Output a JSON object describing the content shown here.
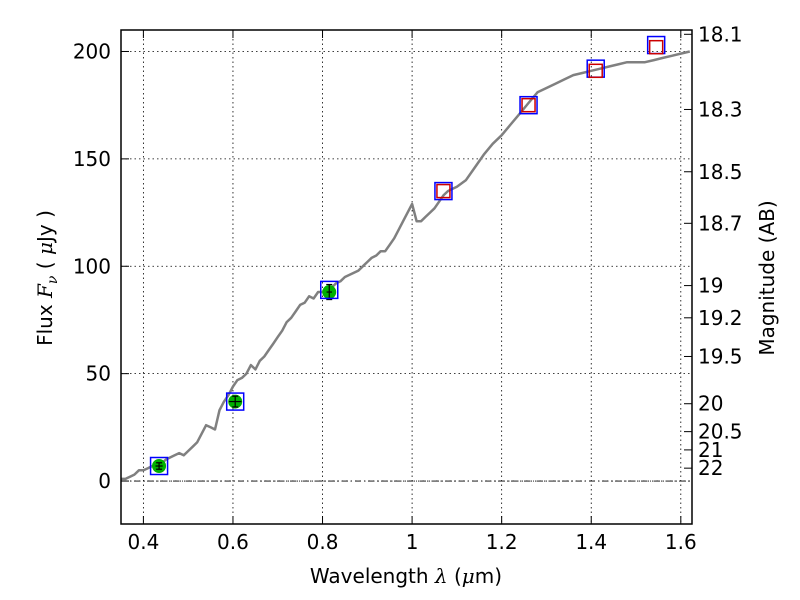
{
  "chart_data": {
    "type": "scatter",
    "title": "",
    "xlabel": {
      "prefix": "Wavelength  ",
      "symbol": "λ",
      "unit_open": " (",
      "unit_mu": "μ",
      "unit_close": "m)"
    },
    "ylabel": {
      "prefix": "Flux  ",
      "symbol": "F",
      "sub": "ν",
      "unit_open": "  ( ",
      "unit_mu": "μ",
      "unit_close": "Jy )"
    },
    "ylabel_right": "Magnitude (AB)",
    "xlim": [
      0.35,
      1.625
    ],
    "ylim": [
      -20,
      210
    ],
    "grid": true,
    "x_ticks": [
      {
        "value": 0.4,
        "label": "0.4"
      },
      {
        "value": 0.6,
        "label": "0.6"
      },
      {
        "value": 0.8,
        "label": "0.8"
      },
      {
        "value": 1.0,
        "label": "1"
      },
      {
        "value": 1.2,
        "label": "1.2"
      },
      {
        "value": 1.4,
        "label": "1.4"
      },
      {
        "value": 1.6,
        "label": "1.6"
      }
    ],
    "y_ticks": [
      {
        "value": 0,
        "label": "0"
      },
      {
        "value": 50,
        "label": "50"
      },
      {
        "value": 100,
        "label": "100"
      },
      {
        "value": 150,
        "label": "150"
      },
      {
        "value": 200,
        "label": "200"
      }
    ],
    "right_ticks": [
      {
        "flux": 208,
        "label": "18.1"
      },
      {
        "flux": 173,
        "label": "18.3"
      },
      {
        "flux": 144,
        "label": "18.5"
      },
      {
        "flux": 120,
        "label": "18.7"
      },
      {
        "flux": 91,
        "label": "19"
      },
      {
        "flux": 76,
        "label": "19.2"
      },
      {
        "flux": 58,
        "label": "19.5"
      },
      {
        "flux": 36,
        "label": "20"
      },
      {
        "flux": 23,
        "label": "20.5"
      },
      {
        "flux": 14.5,
        "label": "21"
      },
      {
        "flux": 6,
        "label": "22"
      }
    ],
    "zero_line": 0,
    "series": [
      {
        "kind": "spectrum",
        "color": "#808080",
        "x": [
          0.35,
          0.36,
          0.37,
          0.38,
          0.39,
          0.4,
          0.41,
          0.42,
          0.43,
          0.44,
          0.45,
          0.46,
          0.47,
          0.48,
          0.49,
          0.5,
          0.51,
          0.52,
          0.53,
          0.54,
          0.55,
          0.56,
          0.57,
          0.58,
          0.59,
          0.6,
          0.61,
          0.62,
          0.63,
          0.64,
          0.65,
          0.66,
          0.67,
          0.68,
          0.69,
          0.7,
          0.71,
          0.72,
          0.73,
          0.74,
          0.75,
          0.76,
          0.77,
          0.78,
          0.79,
          0.8,
          0.81,
          0.82,
          0.83,
          0.84,
          0.85,
          0.86,
          0.87,
          0.88,
          0.89,
          0.9,
          0.91,
          0.92,
          0.93,
          0.94,
          0.95,
          0.96,
          0.97,
          0.98,
          0.99,
          1.0,
          1.01,
          1.02,
          1.03,
          1.04,
          1.05,
          1.06,
          1.07,
          1.08,
          1.09,
          1.1,
          1.12,
          1.14,
          1.16,
          1.18,
          1.2,
          1.22,
          1.24,
          1.26,
          1.28,
          1.3,
          1.32,
          1.34,
          1.36,
          1.38,
          1.4,
          1.42,
          1.44,
          1.46,
          1.48,
          1.5,
          1.52,
          1.54,
          1.56,
          1.58,
          1.6,
          1.62
        ],
        "y": [
          1,
          1,
          2,
          3,
          5,
          5,
          6,
          7,
          7,
          8,
          10,
          11,
          12,
          13,
          12,
          14,
          16,
          18,
          22,
          26,
          25,
          24,
          33,
          37,
          40,
          44,
          47,
          48,
          50,
          54,
          52,
          56,
          58,
          61,
          64,
          67,
          70,
          74,
          76,
          79,
          82,
          83,
          86,
          85,
          88,
          88,
          90,
          90,
          92,
          93,
          95,
          96,
          97,
          98,
          100,
          102,
          104,
          105,
          107,
          107,
          110,
          113,
          117,
          121,
          125,
          129,
          121,
          121,
          123,
          125,
          127,
          130,
          133,
          135,
          136,
          137,
          140,
          146,
          152,
          157,
          161,
          166,
          171,
          176,
          181,
          183,
          185,
          187,
          189,
          190,
          191,
          192,
          193,
          194,
          195,
          195,
          195,
          196,
          197,
          198,
          199,
          200
        ]
      },
      {
        "kind": "photometry",
        "name": "observed",
        "marker": "circle",
        "color": "#00b000",
        "x": [
          0.435,
          0.605,
          0.815
        ],
        "y": [
          7,
          37,
          88
        ],
        "yerr": [
          1.5,
          2.5,
          3.5
        ],
        "xerr": [
          0.008,
          0.014,
          0.006
        ]
      },
      {
        "kind": "model",
        "name": "model-blue",
        "marker": "square",
        "color": "#0000ff",
        "x": [
          0.435,
          0.605,
          0.815,
          1.07,
          1.26,
          1.41,
          1.545
        ],
        "y": [
          7,
          37,
          89,
          135,
          175,
          192,
          203
        ]
      },
      {
        "kind": "model",
        "name": "model-red",
        "marker": "square",
        "color": "#cc0000",
        "x": [
          1.07,
          1.26,
          1.41,
          1.545
        ],
        "y": [
          135,
          175,
          191,
          202
        ]
      }
    ]
  }
}
